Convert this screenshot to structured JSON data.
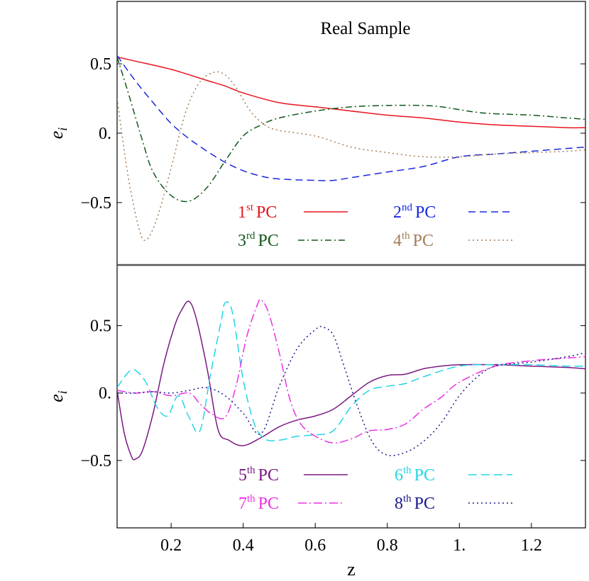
{
  "chart_data": [
    {
      "type": "line",
      "panel": "top",
      "annotation": "Real Sample",
      "ylabel": "e_i",
      "xlabel": "",
      "xlim": [
        0.05,
        1.35
      ],
      "ylim": [
        -0.95,
        0.95
      ],
      "yticks": [
        {
          "v": 0.5,
          "label": "0.5"
        },
        {
          "v": 0.0,
          "label": "0."
        },
        {
          "v": -0.5,
          "label": "−0.5"
        }
      ],
      "legend_columns": 2,
      "series": [
        {
          "name": "1st PC",
          "base": "1",
          "sup": "st",
          "suffix": "PC",
          "color": "#e8141e",
          "dash": "",
          "legendColor": "#e8141e",
          "x": [
            0.05,
            0.1,
            0.2,
            0.3,
            0.35,
            0.4,
            0.5,
            0.6,
            0.7,
            0.8,
            0.9,
            1.0,
            1.1,
            1.2,
            1.3,
            1.35
          ],
          "y": [
            0.55,
            0.52,
            0.46,
            0.38,
            0.34,
            0.29,
            0.22,
            0.19,
            0.16,
            0.13,
            0.11,
            0.08,
            0.06,
            0.05,
            0.04,
            0.04
          ]
        },
        {
          "name": "2nd PC",
          "base": "2",
          "sup": "nd",
          "suffix": "PC",
          "color": "#1a28e0",
          "dash": "10,6",
          "legendColor": "#1a28e0",
          "x": [
            0.05,
            0.1,
            0.15,
            0.2,
            0.25,
            0.3,
            0.35,
            0.4,
            0.45,
            0.5,
            0.6,
            0.65,
            0.7,
            0.8,
            0.9,
            1.0,
            1.1,
            1.2,
            1.3,
            1.35
          ],
          "y": [
            0.56,
            0.38,
            0.22,
            0.07,
            -0.04,
            -0.13,
            -0.21,
            -0.27,
            -0.31,
            -0.33,
            -0.34,
            -0.34,
            -0.32,
            -0.28,
            -0.24,
            -0.17,
            -0.15,
            -0.13,
            -0.11,
            -0.1
          ]
        },
        {
          "name": "3rd PC",
          "base": "3",
          "sup": "rd",
          "suffix": "PC",
          "color": "#12581a",
          "dash": "9,4,2,4",
          "legendColor": "#12581a",
          "x": [
            0.05,
            0.08,
            0.12,
            0.15,
            0.2,
            0.25,
            0.3,
            0.35,
            0.4,
            0.45,
            0.5,
            0.6,
            0.7,
            0.8,
            0.9,
            0.95,
            1.0,
            1.05,
            1.1,
            1.2,
            1.3,
            1.35
          ],
          "y": [
            0.55,
            0.3,
            -0.05,
            -0.28,
            -0.45,
            -0.49,
            -0.39,
            -0.2,
            -0.02,
            0.06,
            0.11,
            0.16,
            0.19,
            0.2,
            0.2,
            0.19,
            0.17,
            0.15,
            0.14,
            0.13,
            0.11,
            0.1
          ]
        },
        {
          "name": "4th PC",
          "base": "4",
          "sup": "th",
          "suffix": "PC",
          "color": "#a57d55",
          "dash": "2,4",
          "legendColor": "#a57d55",
          "x": [
            0.05,
            0.08,
            0.11,
            0.13,
            0.16,
            0.2,
            0.24,
            0.28,
            0.32,
            0.35,
            0.38,
            0.42,
            0.46,
            0.5,
            0.6,
            0.7,
            0.8,
            0.9,
            1.0,
            1.1,
            1.2,
            1.3,
            1.35
          ],
          "y": [
            0.25,
            -0.3,
            -0.68,
            -0.77,
            -0.62,
            -0.25,
            0.15,
            0.37,
            0.44,
            0.42,
            0.33,
            0.16,
            0.06,
            0.02,
            -0.02,
            -0.1,
            -0.14,
            -0.17,
            -0.17,
            -0.15,
            -0.14,
            -0.13,
            -0.12
          ]
        }
      ]
    },
    {
      "type": "line",
      "panel": "bottom",
      "ylabel": "e_i",
      "xlabel": "z",
      "xlim": [
        0.05,
        1.35
      ],
      "ylim": [
        -1.0,
        0.95
      ],
      "xticks": [
        {
          "v": 0.2,
          "label": "0.2"
        },
        {
          "v": 0.4,
          "label": "0.4"
        },
        {
          "v": 0.6,
          "label": "0.6"
        },
        {
          "v": 0.8,
          "label": "0.8"
        },
        {
          "v": 1.0,
          "label": "1."
        },
        {
          "v": 1.2,
          "label": "1.2"
        }
      ],
      "yticks": [
        {
          "v": 0.5,
          "label": "0.5"
        },
        {
          "v": 0.0,
          "label": "0."
        },
        {
          "v": -0.5,
          "label": "−0.5"
        }
      ],
      "legend_columns": 2,
      "series": [
        {
          "name": "5th PC",
          "base": "5",
          "sup": "th",
          "suffix": "PC",
          "color": "#7a1a82",
          "dash": "",
          "legendColor": "#7a1a82",
          "x": [
            0.05,
            0.07,
            0.09,
            0.1,
            0.12,
            0.15,
            0.18,
            0.21,
            0.23,
            0.25,
            0.27,
            0.3,
            0.33,
            0.36,
            0.4,
            0.45,
            0.5,
            0.55,
            0.6,
            0.65,
            0.7,
            0.75,
            0.8,
            0.85,
            0.9,
            0.95,
            1.0,
            1.1,
            1.2,
            1.3,
            1.35
          ],
          "y": [
            0.02,
            -0.3,
            -0.47,
            -0.49,
            -0.43,
            -0.15,
            0.22,
            0.5,
            0.62,
            0.68,
            0.55,
            0.18,
            -0.27,
            -0.35,
            -0.39,
            -0.33,
            -0.25,
            -0.2,
            -0.17,
            -0.12,
            -0.02,
            0.08,
            0.13,
            0.14,
            0.18,
            0.2,
            0.21,
            0.21,
            0.2,
            0.19,
            0.18
          ]
        },
        {
          "name": "6th PC",
          "base": "6",
          "sup": "th",
          "suffix": "PC",
          "color": "#22d6e6",
          "dash": "12,6",
          "legendColor": "#22d6e6",
          "x": [
            0.05,
            0.08,
            0.1,
            0.13,
            0.16,
            0.19,
            0.22,
            0.25,
            0.28,
            0.31,
            0.34,
            0.35,
            0.37,
            0.4,
            0.43,
            0.46,
            0.5,
            0.55,
            0.6,
            0.65,
            0.7,
            0.75,
            0.8,
            0.85,
            0.9,
            1.0,
            1.1,
            1.2,
            1.3,
            1.35
          ],
          "y": [
            0.04,
            0.15,
            0.17,
            0.08,
            -0.1,
            -0.17,
            -0.02,
            -0.18,
            -0.28,
            0.15,
            0.55,
            0.67,
            0.6,
            0.1,
            -0.22,
            -0.34,
            -0.35,
            -0.32,
            -0.31,
            -0.28,
            -0.1,
            0.02,
            0.05,
            0.07,
            0.12,
            0.2,
            0.21,
            0.21,
            0.2,
            0.2
          ]
        },
        {
          "name": "7th PC",
          "base": "7",
          "sup": "th",
          "suffix": "PC",
          "color": "#ee2fe4",
          "dash": "12,4,2,4",
          "legendColor": "#ee2fe4",
          "x": [
            0.05,
            0.1,
            0.15,
            0.2,
            0.25,
            0.28,
            0.31,
            0.35,
            0.38,
            0.41,
            0.44,
            0.45,
            0.47,
            0.5,
            0.53,
            0.56,
            0.6,
            0.65,
            0.7,
            0.75,
            0.8,
            0.85,
            0.9,
            0.95,
            1.0,
            1.1,
            1.2,
            1.3,
            1.35
          ],
          "y": [
            0.02,
            0.0,
            0.01,
            -0.02,
            0.0,
            -0.08,
            -0.15,
            -0.18,
            0.05,
            0.42,
            0.66,
            0.69,
            0.6,
            0.3,
            -0.05,
            -0.23,
            -0.32,
            -0.37,
            -0.34,
            -0.28,
            -0.27,
            -0.23,
            -0.12,
            -0.03,
            0.08,
            0.2,
            0.24,
            0.26,
            0.27
          ]
        },
        {
          "name": "8th PC",
          "base": "8",
          "sup": "th",
          "suffix": "PC",
          "color": "#1a1a8c",
          "dash": "2,4",
          "legendColor": "#1a1a8c",
          "x": [
            0.05,
            0.1,
            0.15,
            0.2,
            0.25,
            0.3,
            0.35,
            0.4,
            0.45,
            0.5,
            0.55,
            0.6,
            0.62,
            0.65,
            0.68,
            0.72,
            0.76,
            0.8,
            0.85,
            0.9,
            0.95,
            1.0,
            1.05,
            1.1,
            1.2,
            1.3,
            1.35
          ],
          "y": [
            0.0,
            0.0,
            0.01,
            0.0,
            0.02,
            0.04,
            -0.02,
            -0.15,
            -0.3,
            0.05,
            0.33,
            0.47,
            0.49,
            0.43,
            0.2,
            -0.12,
            -0.37,
            -0.46,
            -0.44,
            -0.36,
            -0.22,
            -0.02,
            0.12,
            0.2,
            0.23,
            0.27,
            0.3
          ]
        }
      ]
    }
  ]
}
